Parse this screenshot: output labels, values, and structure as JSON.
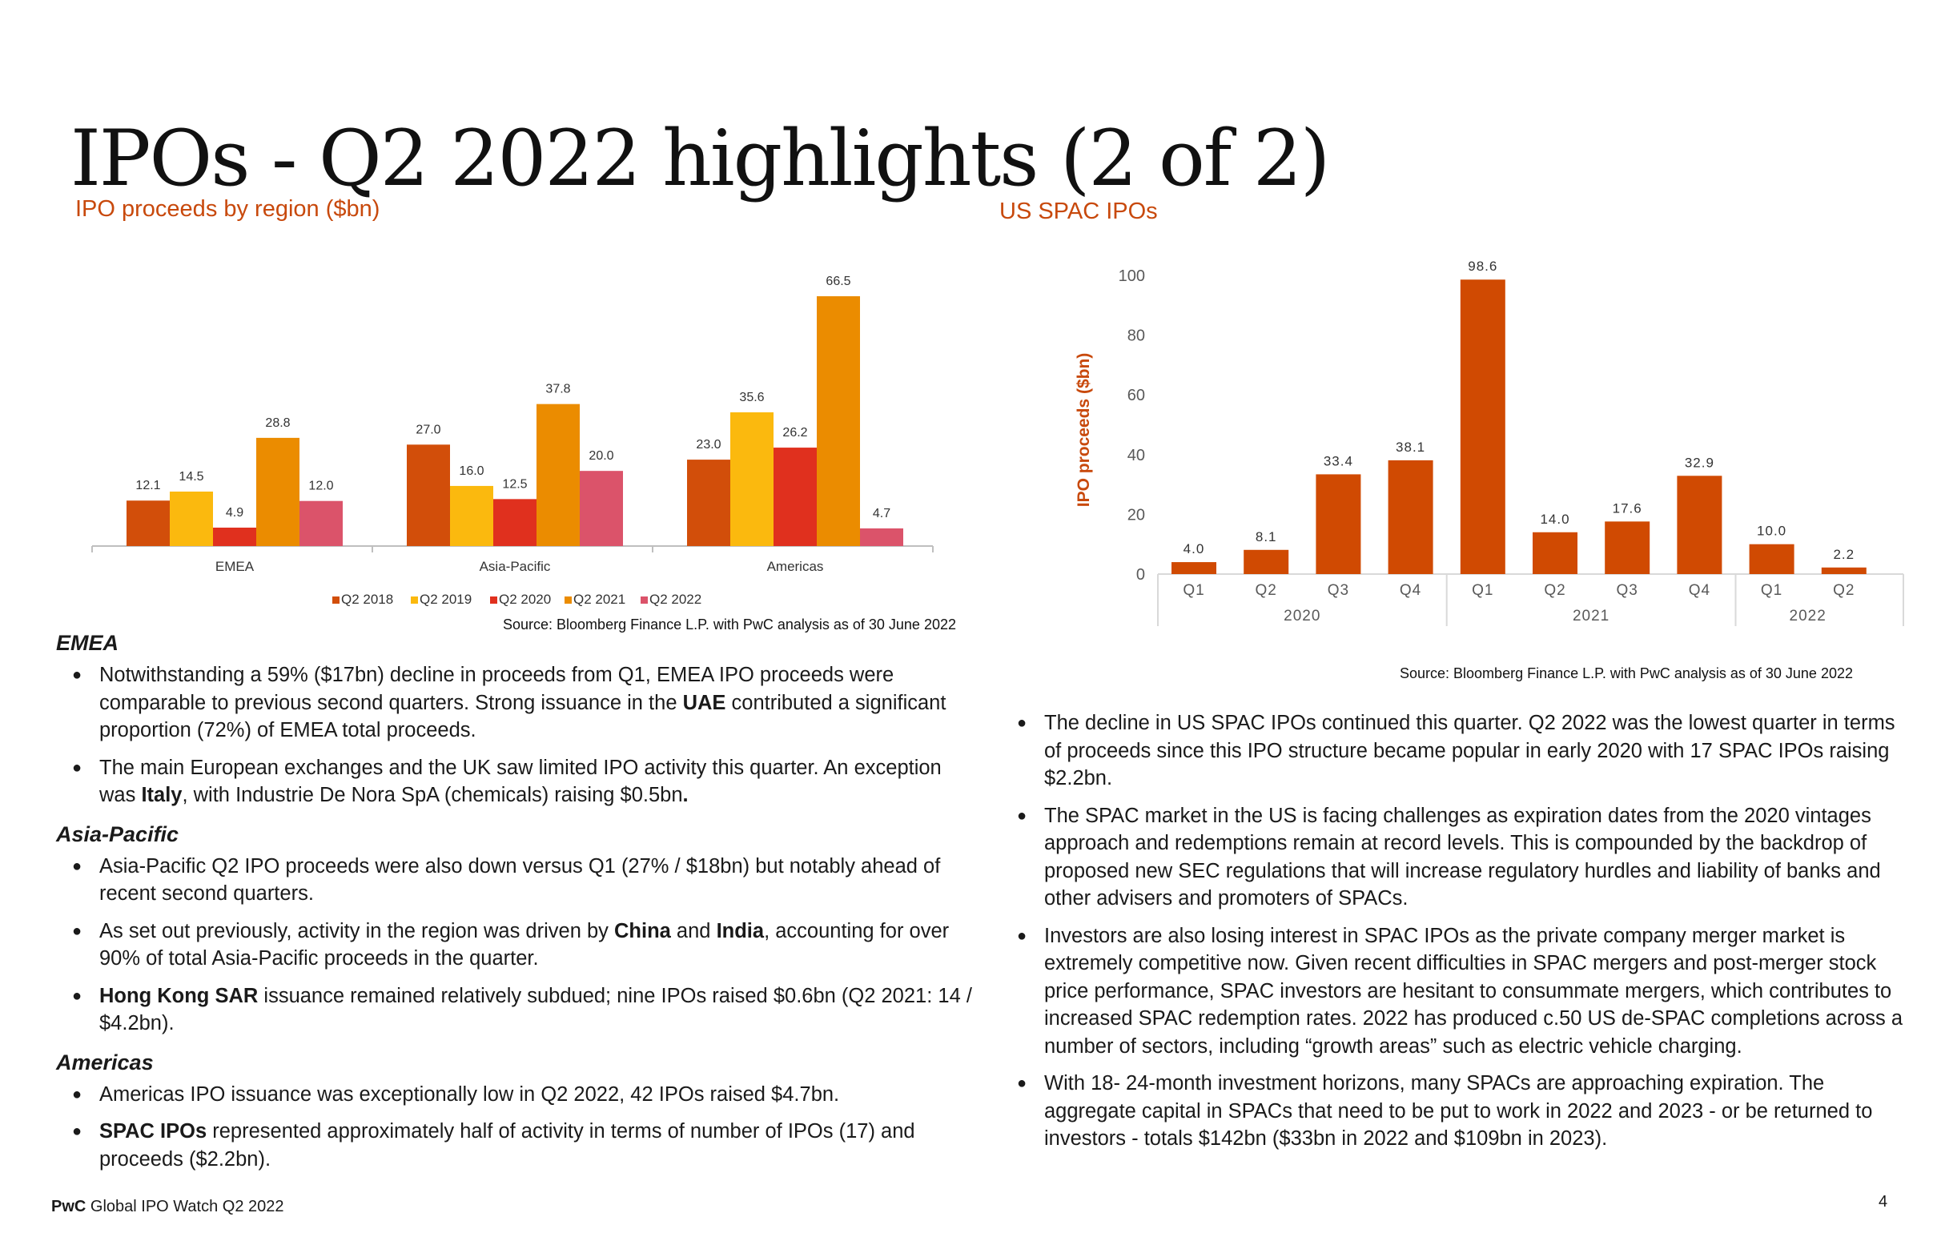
{
  "title": "IPOs - Q2 2022 highlights (2 of 2)",
  "colors": {
    "q2_2018": "#d24e0a",
    "q2_2019": "#fbb90e",
    "q2_2020": "#e0301e",
    "q2_2021": "#eb8c00",
    "q2_2022": "#db536a",
    "spac_bar": "#d04a02",
    "accent_text": "#c8490c"
  },
  "left_chart": {
    "title": "IPO proceeds by region ($bn)",
    "source": "Source: Bloomberg Finance L.P. with PwC analysis as of 30 June 2022"
  },
  "right_chart": {
    "title": "US SPAC IPOs",
    "source": "Source: Bloomberg Finance L.P. with PwC analysis as of 30 June 2022"
  },
  "chart_data": [
    {
      "type": "bar",
      "title": "IPO proceeds by region ($bn)",
      "categories": [
        "EMEA",
        "Asia-Pacific",
        "Americas"
      ],
      "series": [
        {
          "name": "Q2 2018",
          "values": [
            12.1,
            27.0,
            23.0
          ]
        },
        {
          "name": "Q2 2019",
          "values": [
            14.5,
            16.0,
            35.6
          ]
        },
        {
          "name": "Q2 2020",
          "values": [
            4.9,
            12.5,
            26.2
          ]
        },
        {
          "name": "Q2 2021",
          "values": [
            28.8,
            37.8,
            66.5
          ]
        },
        {
          "name": "Q2 2022",
          "values": [
            12.0,
            20.0,
            4.7
          ]
        }
      ],
      "value_labels": [
        [
          "12.1",
          "27.0",
          "23.0"
        ],
        [
          "14.5",
          "16.0",
          "35.6"
        ],
        [
          "4.9",
          "12.5",
          "26.2"
        ],
        [
          "28.8",
          "37.8",
          "66.5"
        ],
        [
          "12.0",
          "20.0",
          "4.7"
        ]
      ],
      "ylim": [
        0,
        66.5
      ],
      "legend": "bottom",
      "grid": false
    },
    {
      "type": "bar",
      "title": "US SPAC IPOs",
      "ylabel": "IPO proceeds ($bn)",
      "categories": [
        "Q1",
        "Q2",
        "Q3",
        "Q4",
        "Q1",
        "Q2",
        "Q3",
        "Q4",
        "Q1",
        "Q2"
      ],
      "groups": [
        {
          "label": "2020",
          "count": 4
        },
        {
          "label": "2021",
          "count": 4
        },
        {
          "label": "2022",
          "count": 2
        }
      ],
      "values": [
        4.0,
        8.1,
        33.4,
        38.1,
        98.6,
        14.0,
        17.6,
        32.9,
        10.0,
        2.2
      ],
      "value_labels": [
        "4.0",
        "8.1",
        "33.4",
        "38.1",
        "98.6",
        "14.0",
        "17.6",
        "32.9",
        "10.0",
        "2.2"
      ],
      "ylim": [
        0,
        100
      ],
      "yticks": [
        0,
        20,
        40,
        60,
        80,
        100
      ],
      "grid": false
    }
  ],
  "left_column": {
    "emea_heading": "EMEA",
    "emea_1a": "Notwithstanding a 59% ($17bn) decline in proceeds from Q1, EMEA IPO proceeds were comparable to previous second quarters. Strong issuance in the ",
    "emea_1b": "UAE",
    "emea_1c": " contributed a significant proportion (72%) of EMEA total proceeds.",
    "emea_2a": "The main European exchanges and the UK saw limited IPO activity this quarter. An exception was ",
    "emea_2b": "Italy",
    "emea_2c": ", with Industrie De Nora SpA (chemicals) raising $0.5bn",
    "emea_2d": ".",
    "apac_heading": "Asia-Pacific",
    "apac_1": "Asia-Pacific Q2 IPO proceeds were also down versus Q1 (27% / $18bn) but notably ahead of recent second quarters.",
    "apac_2a": "As set out previously, activity in the region was driven by ",
    "apac_2b": "China",
    "apac_2c": " and ",
    "apac_2d": "India",
    "apac_2e": ", accounting for over 90% of total Asia-Pacific proceeds in the quarter.",
    "apac_3a": "Hong Kong SAR",
    "apac_3b": " issuance remained relatively subdued; nine IPOs raised $0.6bn (Q2 2021: 14 / $4.2bn).",
    "americas_heading": "Americas",
    "americas_1": "Americas IPO issuance was exceptionally low in Q2 2022, 42 IPOs raised $4.7bn.",
    "americas_2a": "SPAC IPOs",
    "americas_2b": " represented approximately half of activity in terms of number of IPOs (17) and proceeds ($2.2bn)."
  },
  "right_column": {
    "bullets": [
      "The decline in US SPAC IPOs continued this quarter. Q2 2022 was the lowest quarter in terms of proceeds since this IPO structure became popular in early 2020 with 17 SPAC IPOs raising $2.2bn.",
      "The SPAC market in the US is facing challenges as expiration dates from the 2020 vintages approach and redemptions remain at record levels. This is compounded by the backdrop of proposed new SEC regulations that will increase regulatory hurdles and liability of banks and other advisers and promoters of SPACs.",
      "Investors are also losing interest in SPAC IPOs as the private company merger market is extremely competitive now. Given recent difficulties in SPAC mergers and post-merger stock price performance, SPAC investors are hesitant to consummate mergers, which contributes to increased SPAC redemption rates. 2022 has produced c.50 US de-SPAC completions across a number of sectors, including “growth areas” such as electric vehicle charging.",
      "With 18- 24-month investment horizons, many SPACs are approaching expiration. The aggregate capital in SPACs that need to be put to work in 2022 and 2023 - or be returned to investors - totals $142bn ($33bn in 2022 and $109bn in 2023)."
    ]
  },
  "footer": {
    "brand": "PwC",
    "text": " Global IPO Watch Q2 2022",
    "page_number": "4"
  }
}
